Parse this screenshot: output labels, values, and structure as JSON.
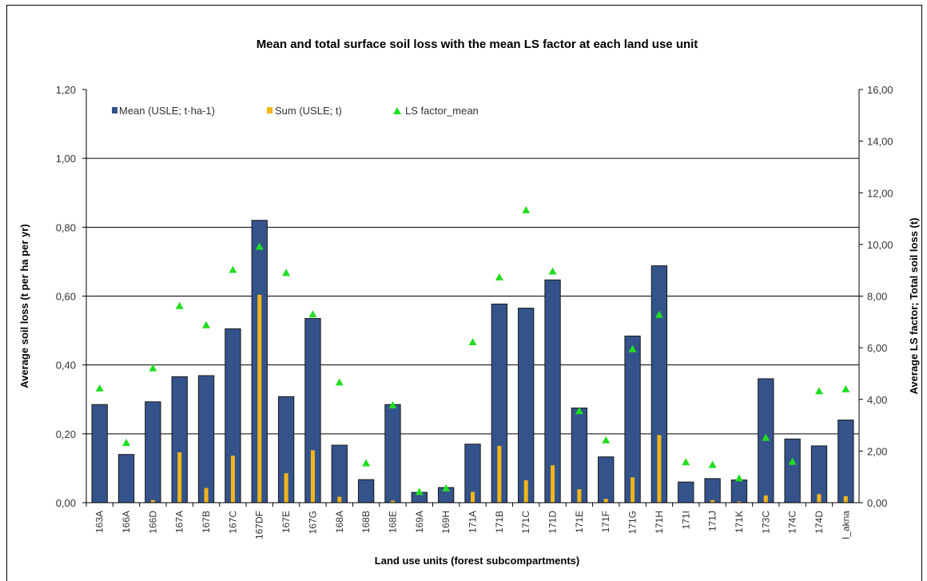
{
  "chart_data": {
    "type": "bar",
    "title": "Mean and total surface soil loss with the mean LS factor at each land use unit",
    "xlabel": "Land use units (forest subcompartments)",
    "ylabel": "Average soil loss (t per ha per yr)",
    "y2label": "Average LS factor; Total soil loss (t)",
    "ylim": [
      0,
      1.2
    ],
    "y2lim": [
      0,
      16
    ],
    "yticks": [
      "0,00",
      "0,20",
      "0,40",
      "0,60",
      "0,80",
      "1,00",
      "1,20"
    ],
    "y2ticks": [
      "0,00",
      "2,00",
      "4,00",
      "6,00",
      "8,00",
      "10,00",
      "12,00",
      "14,00",
      "16,00"
    ],
    "grid": true,
    "legend_position": "top-left",
    "categories": [
      "163A",
      "166A",
      "166D",
      "167A",
      "167B",
      "167C",
      "167DF",
      "167E",
      "167G",
      "168A",
      "168B",
      "168E",
      "169A",
      "169H",
      "171A",
      "171B",
      "171C",
      "171D",
      "171E",
      "171F",
      "171G",
      "171H",
      "171I",
      "171J",
      "171K",
      "173C",
      "174C",
      "174D",
      "I_akna"
    ],
    "series": [
      {
        "name": "Mean (USLE; t·ha-1)",
        "axis": "left",
        "kind": "bar",
        "color": "#34538a",
        "values": [
          0.285,
          0.14,
          0.293,
          0.366,
          0.369,
          0.505,
          0.82,
          0.308,
          0.535,
          0.167,
          0.067,
          0.285,
          0.03,
          0.044,
          0.17,
          0.577,
          0.565,
          0.647,
          0.275,
          0.133,
          0.484,
          0.688,
          0.06,
          0.07,
          0.066,
          0.36,
          0.185,
          0.165,
          0.24
        ]
      },
      {
        "name": "Sum (USLE; t)",
        "axis": "right",
        "kind": "bar",
        "color": "#f2b51a",
        "values": [
          0.0,
          0.0,
          0.1,
          1.95,
          0.57,
          1.82,
          8.05,
          1.14,
          2.03,
          0.23,
          0.0,
          0.08,
          0.0,
          0.0,
          0.42,
          2.2,
          0.87,
          1.45,
          0.52,
          0.15,
          0.98,
          2.62,
          0.0,
          0.1,
          0.05,
          0.28,
          0.0,
          0.33,
          0.25
        ]
      },
      {
        "name": "LS factor_mean",
        "axis": "right",
        "kind": "marker",
        "color": "#22dd22",
        "values": [
          4.43,
          2.32,
          5.21,
          7.62,
          6.88,
          9.02,
          9.92,
          8.9,
          7.3,
          4.66,
          1.53,
          3.78,
          0.42,
          0.56,
          6.22,
          8.73,
          11.33,
          8.96,
          3.55,
          2.42,
          5.95,
          7.28,
          1.57,
          1.47,
          0.95,
          2.52,
          1.59,
          4.32,
          4.4
        ]
      }
    ]
  }
}
